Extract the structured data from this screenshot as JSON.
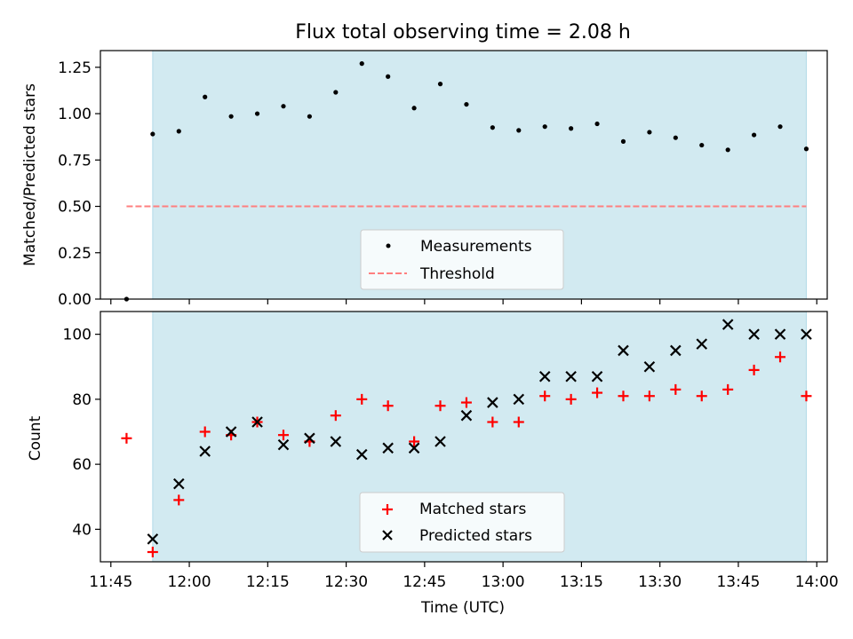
{
  "figure": {
    "title": "Flux total observing time = 2.08 h",
    "colors": {
      "shade": "#add8e6",
      "measurement": "#000000",
      "threshold": "#ff7f7f",
      "matched": "#ff0000",
      "predicted": "#000000"
    }
  },
  "chart_data": [
    {
      "type": "scatter",
      "ylabel": "Matched/Predicted stars",
      "xlabel": "",
      "ylim": [
        0,
        1.34
      ],
      "yticks": [
        "0.00",
        "0.25",
        "0.50",
        "0.75",
        "1.00",
        "1.25"
      ],
      "shaded_span": [
        "11:53",
        "13:58"
      ],
      "legend": {
        "placement": "lower center",
        "entries": [
          "Measurements",
          "Threshold"
        ]
      },
      "series": [
        {
          "name": "Measurements",
          "marker": "dot",
          "x": [
            "11:48",
            "11:53",
            "11:58",
            "12:03",
            "12:08",
            "12:13",
            "12:18",
            "12:23",
            "12:28",
            "12:33",
            "12:38",
            "12:43",
            "12:48",
            "12:53",
            "12:58",
            "13:03",
            "13:08",
            "13:13",
            "13:18",
            "13:23",
            "13:28",
            "13:33",
            "13:38",
            "13:43",
            "13:48",
            "13:53",
            "13:58"
          ],
          "y": [
            0.0,
            0.89,
            0.905,
            1.09,
            0.985,
            1.0,
            1.04,
            0.985,
            1.115,
            1.27,
            1.2,
            1.03,
            1.16,
            1.05,
            0.925,
            0.91,
            0.93,
            0.92,
            0.945,
            0.85,
            0.9,
            0.87,
            0.83,
            0.805,
            0.885,
            0.93,
            0.81
          ]
        },
        {
          "name": "Threshold",
          "marker": "dashed-line",
          "x": [
            "11:48",
            "13:58"
          ],
          "y": [
            0.5,
            0.5
          ]
        }
      ]
    },
    {
      "type": "scatter",
      "ylabel": "Count",
      "xlabel": "Time (UTC)",
      "ylim": [
        30,
        107
      ],
      "yticks": [
        "40",
        "60",
        "80",
        "100"
      ],
      "xlim": [
        "11:43",
        "14:02"
      ],
      "xticks": [
        "11:45",
        "12:00",
        "12:15",
        "12:30",
        "12:45",
        "13:00",
        "13:15",
        "13:30",
        "13:45",
        "14:00"
      ],
      "shaded_span": [
        "11:53",
        "13:58"
      ],
      "legend": {
        "placement": "lower center",
        "entries": [
          "Matched stars",
          "Predicted stars"
        ]
      },
      "series": [
        {
          "name": "Matched stars",
          "marker": "plus",
          "x": [
            "11:48",
            "11:53",
            "11:58",
            "12:03",
            "12:08",
            "12:13",
            "12:18",
            "12:23",
            "12:28",
            "12:33",
            "12:38",
            "12:43",
            "12:48",
            "12:53",
            "12:58",
            "13:03",
            "13:08",
            "13:13",
            "13:18",
            "13:23",
            "13:28",
            "13:33",
            "13:38",
            "13:43",
            "13:48",
            "13:53",
            "13:58"
          ],
          "y": [
            68,
            33,
            49,
            70,
            69,
            73,
            69,
            67,
            75,
            80,
            78,
            67,
            78,
            79,
            73,
            73,
            81,
            80,
            82,
            81,
            81,
            83,
            81,
            83,
            89,
            93,
            81
          ]
        },
        {
          "name": "Predicted stars",
          "marker": "x",
          "x": [
            "11:53",
            "11:58",
            "12:03",
            "12:08",
            "12:13",
            "12:18",
            "12:23",
            "12:28",
            "12:33",
            "12:38",
            "12:43",
            "12:48",
            "12:53",
            "12:58",
            "13:03",
            "13:08",
            "13:13",
            "13:18",
            "13:23",
            "13:28",
            "13:33",
            "13:38",
            "13:43",
            "13:48",
            "13:53",
            "13:58"
          ],
          "y": [
            37,
            54,
            64,
            70,
            73,
            66,
            68,
            67,
            63,
            65,
            65,
            67,
            75,
            79,
            80,
            87,
            87,
            87,
            95,
            90,
            95,
            97,
            103,
            100,
            100,
            100
          ]
        }
      ]
    }
  ]
}
